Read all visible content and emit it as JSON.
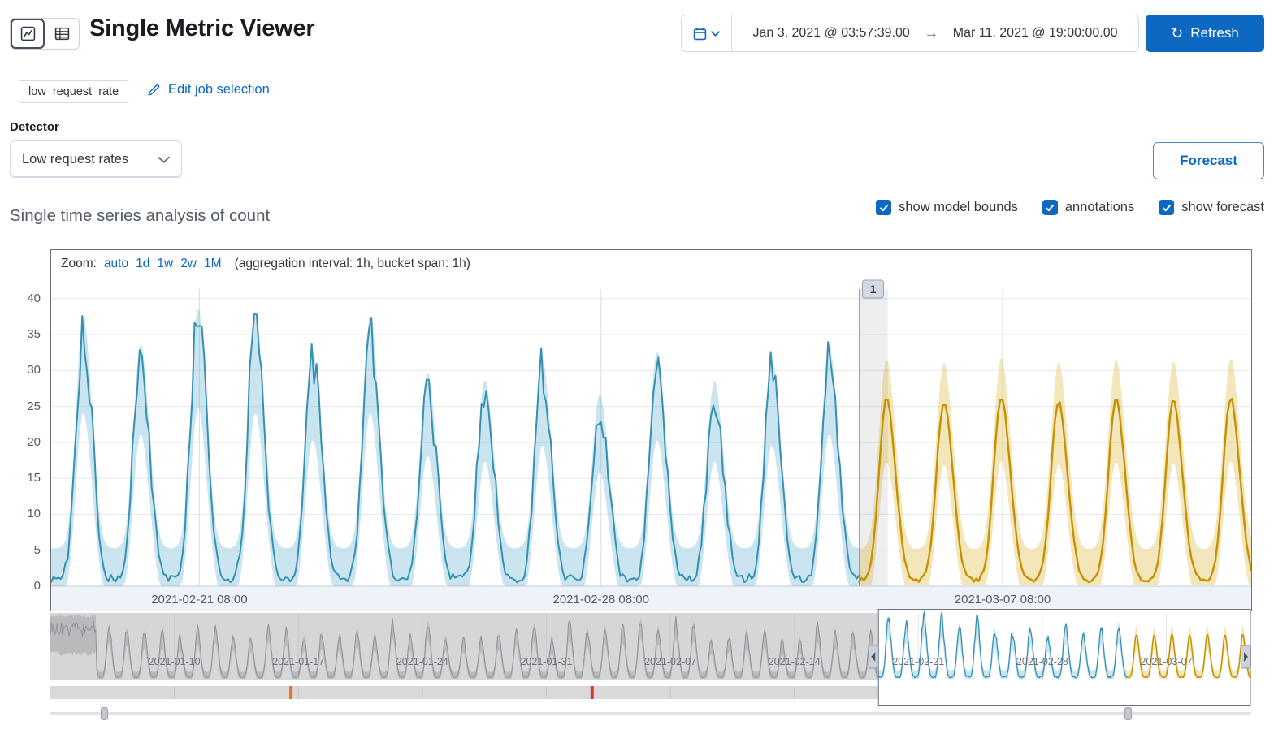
{
  "header": {
    "title": "Single Metric Viewer",
    "time_range": {
      "start": "Jan 3, 2021 @ 03:57:39.00",
      "arrow": "→",
      "end": "Mar 11, 2021 @ 19:00:00.00"
    },
    "refresh_label": "Refresh"
  },
  "job": {
    "badge": "low_request_rate",
    "edit_link": "Edit job selection"
  },
  "detector": {
    "label": "Detector",
    "selected": "Low request rates"
  },
  "forecast_button": "Forecast",
  "analysis": {
    "heading": "Single time series analysis of count",
    "checkboxes": [
      {
        "label": "show model bounds",
        "checked": true
      },
      {
        "label": "annotations",
        "checked": true
      },
      {
        "label": "show forecast",
        "checked": true
      }
    ]
  },
  "zoom": {
    "label": "Zoom:",
    "options": [
      "auto",
      "1d",
      "1w",
      "2w",
      "1M"
    ],
    "suffix": "(aggregation interval: 1h, bucket span: 1h)"
  },
  "colors": {
    "primary_button": "#0d68c1",
    "link": "#0a67c2",
    "actual_line": "#3590b2",
    "actual_band": "rgba(64,160,200,0.28)",
    "forecast_line": "#c49102",
    "forecast_band": "rgba(212,164,10,0.28)",
    "annotation_band": "rgba(105,112,125,0.12)",
    "anomaly_orange": "#e8731a",
    "anomaly_red": "#da3b2b"
  },
  "chart_data": [
    {
      "id": "main-timeseries",
      "type": "line",
      "title": "Single time series analysis of count",
      "x_start": "2021-02-18 18:00",
      "x_end": "2021-03-11 16:00",
      "total_hours": 502,
      "ylim": [
        0,
        42.5
      ],
      "yticks": [
        0,
        5,
        10,
        15,
        20,
        25,
        30,
        35,
        40
      ],
      "xticks": [
        {
          "label": "2021-02-21 08:00",
          "hour": 62
        },
        {
          "label": "2021-02-28 08:00",
          "hour": 230
        },
        {
          "label": "2021-03-07 08:00",
          "hour": 398
        }
      ],
      "series": [
        {
          "name": "actual count",
          "color": "#3590b2",
          "band_color": "rgba(64,160,200,0.28)",
          "start_hour": 0,
          "end_hour": 338,
          "first_peak_hour": 13,
          "peak_interval_hours": 24,
          "daily_peaks": [
            35,
            31,
            36,
            35,
            30,
            35,
            27,
            26,
            29,
            24,
            30,
            26,
            29,
            31
          ]
        },
        {
          "name": "forecast",
          "color": "#c49102",
          "band_color": "rgba(212,164,10,0.28)",
          "start_hour": 338,
          "end_hour": 502,
          "first_peak_hour": 349,
          "peak_interval_hours": 24,
          "daily_peaks": [
            25,
            24.5,
            25.2,
            24.6,
            25,
            24.7,
            25.1
          ]
        }
      ],
      "annotations": [
        {
          "label": "1",
          "start_hour": 338,
          "end_hour": 350
        }
      ]
    },
    {
      "id": "context-navigator",
      "type": "line",
      "x_start": "2021-01-03 00:00",
      "x_end": "2021-03-11 19:00",
      "total_hours": 1627,
      "selection_start_hour": 1122,
      "forecast_start_hour": 1458,
      "burst_end_hour": 62,
      "week_ticks": [
        {
          "label": "2021-01-10",
          "hour": 168
        },
        {
          "label": "2021-01-17",
          "hour": 336
        },
        {
          "label": "2021-01-24",
          "hour": 504
        },
        {
          "label": "2021-01-31",
          "hour": 672
        },
        {
          "label": "2021-02-07",
          "hour": 840
        },
        {
          "label": "2021-02-14",
          "hour": 1008
        },
        {
          "label": "2021-02-21",
          "hour": 1176
        },
        {
          "label": "2021-02-28",
          "hour": 1344
        },
        {
          "label": "2021-03-07",
          "hour": 1512
        }
      ],
      "anomaly_markers": [
        {
          "hour": 326,
          "color": "#e8731a"
        },
        {
          "hour": 734,
          "color": "#da3b2b"
        }
      ]
    }
  ]
}
